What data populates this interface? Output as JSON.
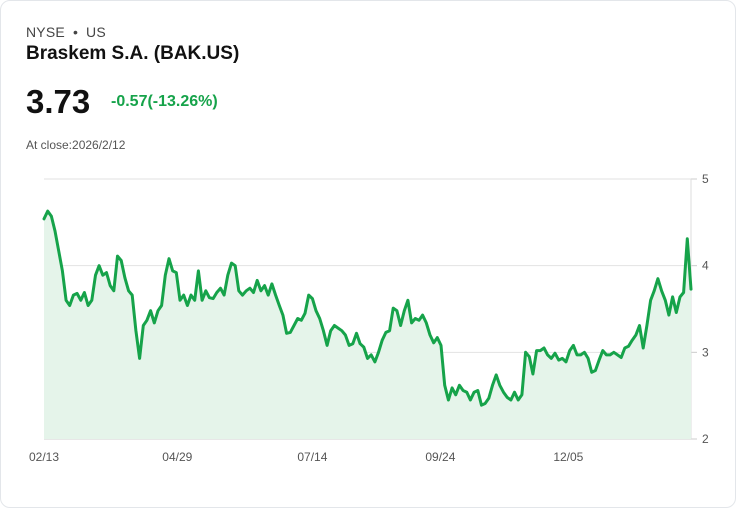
{
  "header": {
    "exchange": "NYSE",
    "separator": "•",
    "region": "US",
    "name": "Braskem S.A. (BAK.US)",
    "price": "3.73",
    "change": "-0.57(-13.26%)",
    "at_close": "At close:2026/2/12"
  },
  "colors": {
    "line": "#16a34a",
    "fill": "#e5f4ea",
    "change": "#16a34a",
    "grid": "#e2e2e2"
  },
  "chart_data": {
    "type": "area",
    "title": "Braskem S.A. (BAK.US)",
    "x_unit": "days since 02/13",
    "x_range": [
      0,
      364
    ],
    "ylim": [
      2,
      5
    ],
    "y_ticks": [
      {
        "v": 5,
        "label": "5"
      },
      {
        "v": 4,
        "label": "4"
      },
      {
        "v": 3,
        "label": "3"
      },
      {
        "v": 2,
        "label": "2"
      }
    ],
    "x_ticks": [
      {
        "d": 0,
        "label": "02/13"
      },
      {
        "d": 75,
        "label": "04/29"
      },
      {
        "d": 151,
        "label": "07/14"
      },
      {
        "d": 223,
        "label": "09/24"
      },
      {
        "d": 295,
        "label": "12/05"
      }
    ],
    "grid": true,
    "values": [
      4.54,
      4.63,
      4.57,
      4.4,
      4.17,
      3.94,
      3.6,
      3.54,
      3.66,
      3.68,
      3.6,
      3.69,
      3.54,
      3.6,
      3.89,
      4.0,
      3.89,
      3.92,
      3.77,
      3.71,
      4.11,
      4.06,
      3.86,
      3.71,
      3.66,
      3.25,
      2.93,
      3.31,
      3.37,
      3.48,
      3.34,
      3.48,
      3.54,
      3.89,
      4.08,
      3.94,
      3.92,
      3.6,
      3.66,
      3.54,
      3.66,
      3.6,
      3.94,
      3.6,
      3.71,
      3.63,
      3.62,
      3.69,
      3.74,
      3.66,
      3.89,
      4.03,
      4.0,
      3.71,
      3.66,
      3.71,
      3.74,
      3.69,
      3.83,
      3.71,
      3.77,
      3.66,
      3.79,
      3.66,
      3.54,
      3.43,
      3.22,
      3.23,
      3.31,
      3.39,
      3.37,
      3.45,
      3.66,
      3.62,
      3.48,
      3.39,
      3.25,
      3.08,
      3.25,
      3.31,
      3.28,
      3.25,
      3.2,
      3.08,
      3.1,
      3.22,
      3.1,
      3.06,
      2.93,
      2.97,
      2.89,
      3.0,
      3.14,
      3.23,
      3.25,
      3.51,
      3.48,
      3.31,
      3.48,
      3.6,
      3.34,
      3.39,
      3.37,
      3.43,
      3.34,
      3.2,
      3.11,
      3.17,
      3.08,
      2.62,
      2.45,
      2.59,
      2.51,
      2.62,
      2.56,
      2.54,
      2.45,
      2.54,
      2.56,
      2.39,
      2.41,
      2.47,
      2.62,
      2.74,
      2.62,
      2.54,
      2.48,
      2.45,
      2.54,
      2.45,
      2.51,
      3.0,
      2.95,
      2.75,
      3.02,
      3.02,
      3.05,
      2.97,
      2.93,
      2.99,
      2.91,
      2.93,
      2.89,
      3.02,
      3.08,
      2.97,
      2.97,
      3.0,
      2.93,
      2.77,
      2.79,
      2.91,
      3.02,
      2.97,
      2.97,
      3.0,
      2.97,
      2.94,
      3.05,
      3.07,
      3.14,
      3.2,
      3.31,
      3.05,
      3.31,
      3.6,
      3.71,
      3.85,
      3.71,
      3.6,
      3.43,
      3.64,
      3.46,
      3.64,
      3.69,
      4.31,
      3.73
    ]
  }
}
